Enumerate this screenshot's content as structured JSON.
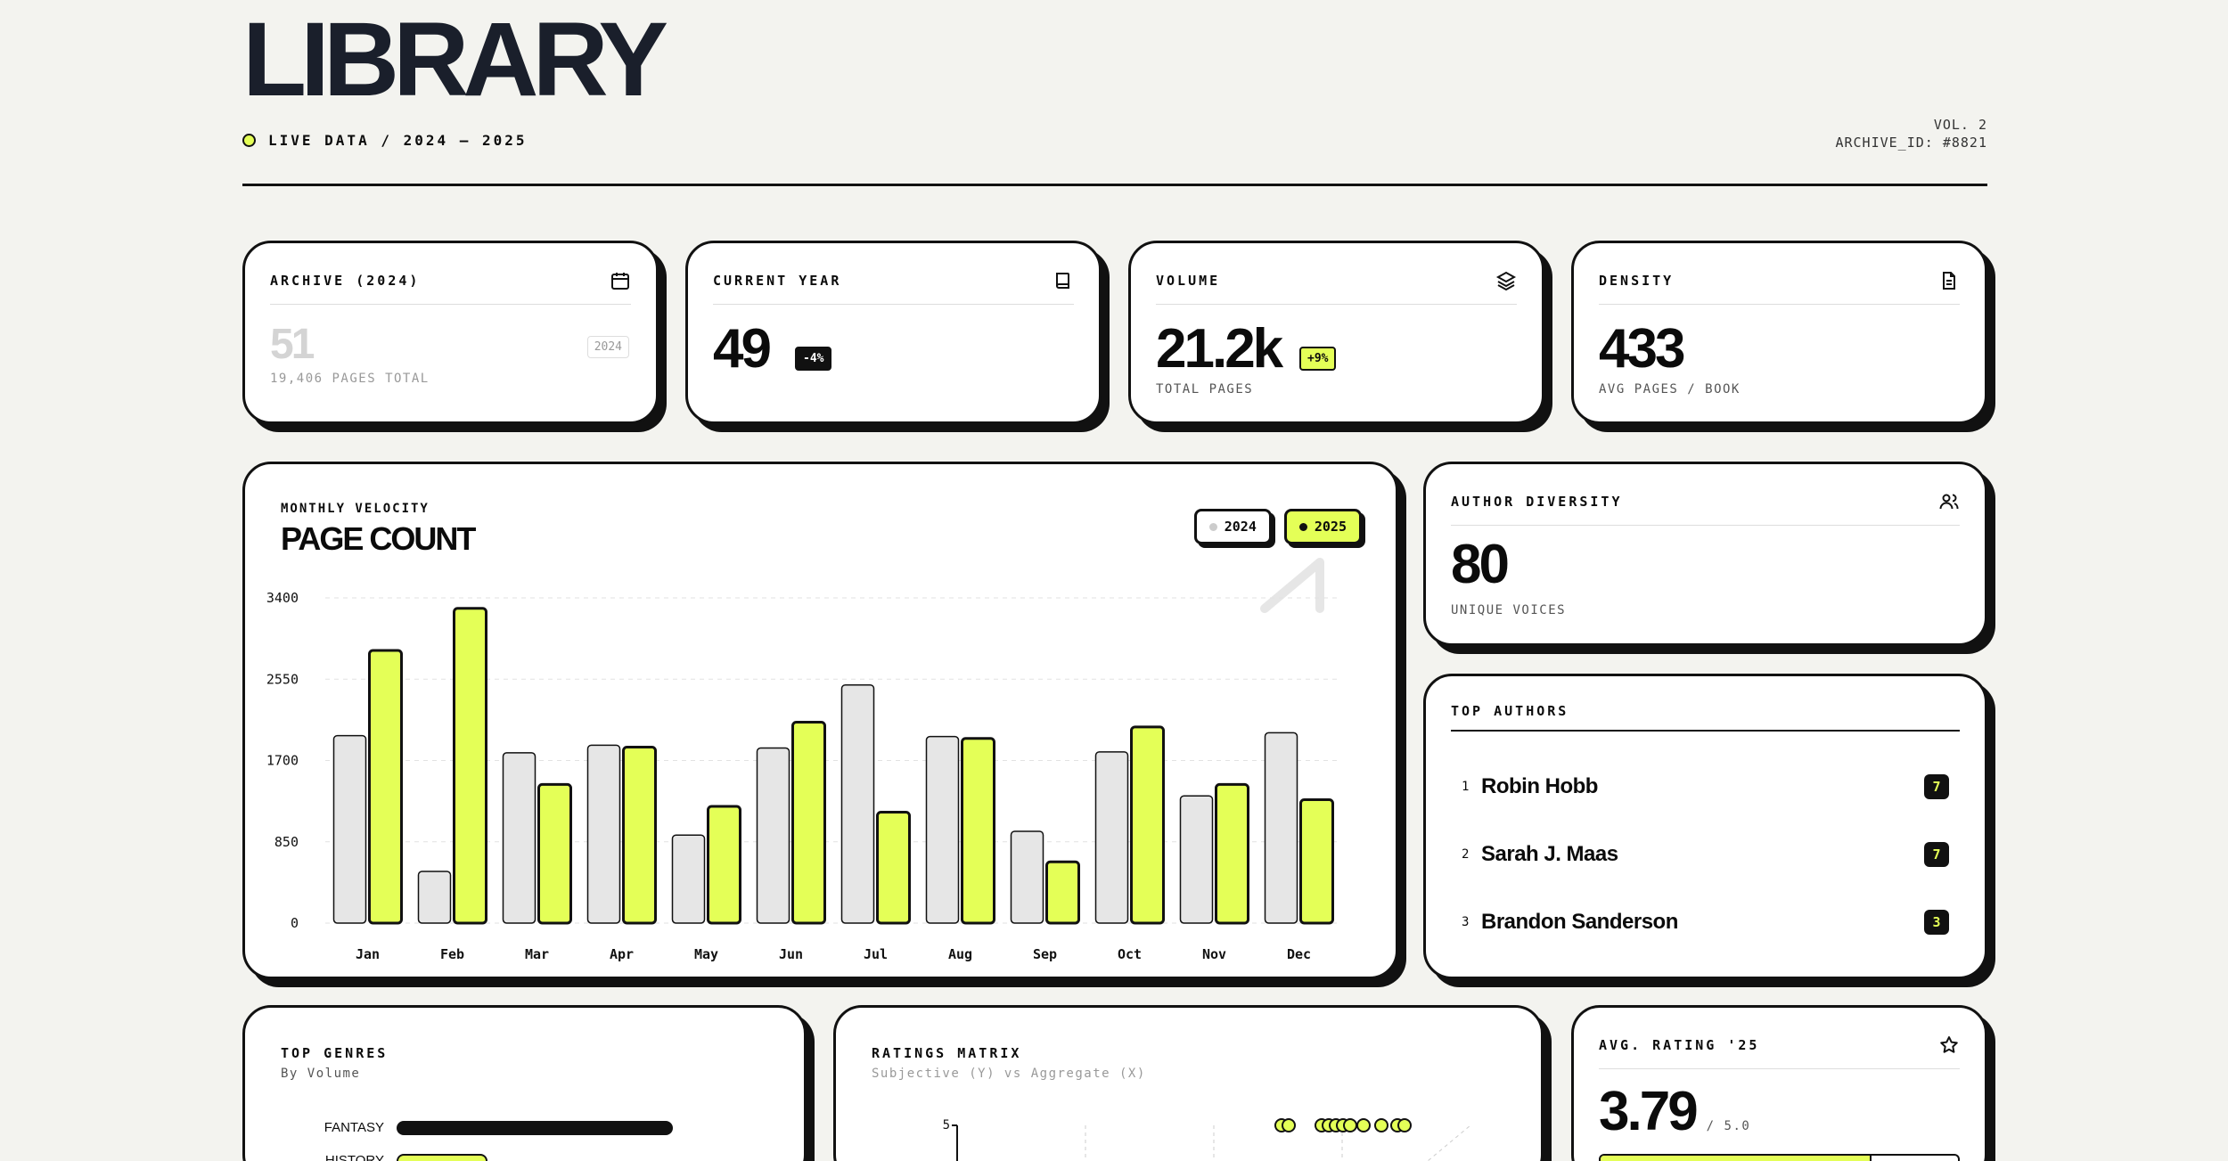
{
  "header": {
    "title": "LIBRARY",
    "live": "LIVE DATA / 2024 — 2025",
    "vol": "VOL. 2",
    "archive_id": "ARCHIVE_ID: #8821"
  },
  "colors": {
    "accent": "#e4ff57",
    "ink": "#111111",
    "grey": "#e6e6e6"
  },
  "stats": [
    {
      "label": "ARCHIVE (2024)",
      "icon": "calendar-icon",
      "value": "51",
      "sub": "19,406 PAGES TOTAL",
      "badge": "2024"
    },
    {
      "label": "CURRENT YEAR",
      "icon": "book-icon",
      "value": "49",
      "badge": "-4%"
    },
    {
      "label": "VOLUME",
      "icon": "layers-icon",
      "value": "21.2k",
      "badge": "+9%",
      "sub": "TOTAL PAGES"
    },
    {
      "label": "DENSITY",
      "icon": "document-icon",
      "value": "433",
      "sub": "AVG PAGES / BOOK"
    }
  ],
  "velocity": {
    "kicker": "MONTHLY VELOCITY",
    "title": "PAGE COUNT",
    "legend_2024": "2024",
    "legend_2025": "2025"
  },
  "chart_data": {
    "type": "bar",
    "title": "PAGE COUNT",
    "categories": [
      "Jan",
      "Feb",
      "Mar",
      "Apr",
      "May",
      "Jun",
      "Jul",
      "Aug",
      "Sep",
      "Oct",
      "Nov",
      "Dec"
    ],
    "series": [
      {
        "name": "2024",
        "values": [
          1960,
          540,
          1780,
          1860,
          920,
          1830,
          2490,
          1950,
          960,
          1790,
          1330,
          1990
        ]
      },
      {
        "name": "2025",
        "values": [
          2850,
          3290,
          1450,
          1840,
          1220,
          2100,
          1160,
          1930,
          640,
          2050,
          1450,
          1290
        ]
      }
    ],
    "yticks": [
      "0",
      "850",
      "1700",
      "2550",
      "3400"
    ],
    "ylim": [
      0,
      3400
    ],
    "grid": true
  },
  "diversity": {
    "label": "AUTHOR DIVERSITY",
    "value": "80",
    "sub": "UNIQUE VOICES"
  },
  "authors": {
    "label": "TOP AUTHORS",
    "items": [
      {
        "rank": "1",
        "name": "Robin Hobb",
        "count": "7"
      },
      {
        "rank": "2",
        "name": "Sarah J. Maas",
        "count": "7"
      },
      {
        "rank": "3",
        "name": "Brandon Sanderson",
        "count": "3"
      }
    ]
  },
  "genres": {
    "label": "TOP GENRES",
    "sub": "By Volume",
    "items": [
      {
        "name": "FANTASY",
        "value": 1.0
      },
      {
        "name": "HISTORY",
        "value": 0.33
      }
    ]
  },
  "ratings": {
    "label": "RATINGS MATRIX",
    "sub": "Subjective (Y) vs Aggregate (X)",
    "ytick": "5"
  },
  "avg": {
    "label": "AVG. RATING '25",
    "value": "3.79",
    "sub": "/ 5.0",
    "fraction": 0.758
  }
}
